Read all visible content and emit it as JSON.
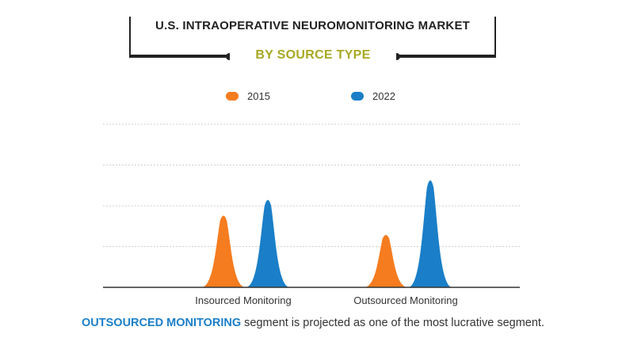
{
  "header": {
    "title": "U.S. INTRAOPERATIVE NEUROMONITORING MARKET",
    "subtitle": "BY SOURCE TYPE"
  },
  "colors": {
    "series_2015": "#f57c1f",
    "series_2022": "#1a7fc8",
    "subtitle": "#a7a923",
    "highlight": "#1a7fc8"
  },
  "chart_data": {
    "type": "area",
    "title": "U.S. INTRAOPERATIVE NEUROMONITORING MARKET",
    "subtitle": "BY SOURCE TYPE",
    "categories": [
      "Insourced Monitoring",
      "Outsourced Monitoring"
    ],
    "series": [
      {
        "name": "2015",
        "values": [
          1.82,
          1.33
        ]
      },
      {
        "name": "2022",
        "values": [
          2.22,
          2.72
        ]
      }
    ],
    "ylim": [
      0,
      4
    ],
    "grid": true,
    "legend_position": "top",
    "xlabel": "",
    "ylabel": ""
  },
  "footer": {
    "highlight": "OUTSOURCED MONITORING",
    "text": " segment is projected as one of the most lucrative segment."
  }
}
